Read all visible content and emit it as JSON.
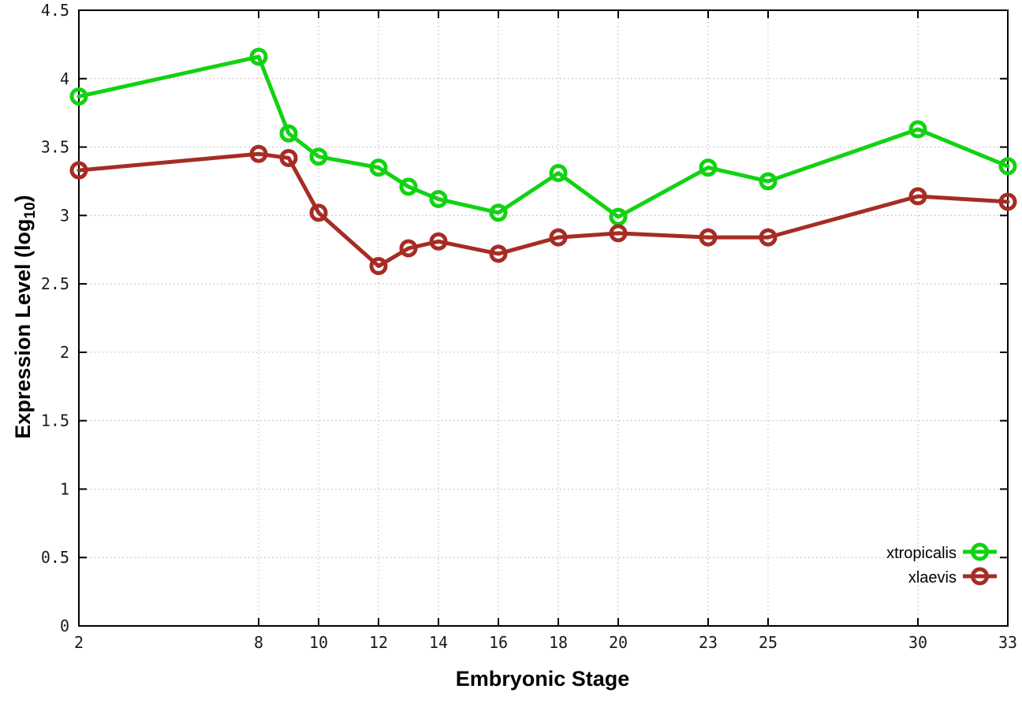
{
  "chart_data": {
    "type": "line",
    "title": "",
    "xlabel": "Embryonic Stage",
    "ylabel": "Expression Level (log10)",
    "ylabel_base": "Expression Level (log",
    "ylabel_sub": "10",
    "ylabel_close": ")",
    "x": [
      2,
      8,
      9,
      10,
      12,
      13,
      14,
      16,
      18,
      20,
      23,
      25,
      30,
      33
    ],
    "xticks": [
      "2",
      "8",
      "10",
      "12",
      "14",
      "16",
      "18",
      "20",
      "23",
      "25",
      "30",
      "33"
    ],
    "yticks": [
      "0",
      "0.5",
      "1",
      "1.5",
      "2",
      "2.5",
      "3",
      "3.5",
      "4",
      "4.5"
    ],
    "xlim": [
      2,
      33
    ],
    "ylim": [
      0,
      4.5
    ],
    "grid": true,
    "grid_style": "dotted",
    "legend_position": "bottom-right",
    "marker": "open-circle",
    "series": [
      {
        "name": "xtropicalis",
        "color": "#12d212",
        "values": [
          3.87,
          4.16,
          3.6,
          3.43,
          3.35,
          3.21,
          3.12,
          3.02,
          3.31,
          2.99,
          3.35,
          3.25,
          3.63,
          3.36
        ]
      },
      {
        "name": "xlaevis",
        "color": "#a62c24",
        "values": [
          3.33,
          3.45,
          3.42,
          3.02,
          2.63,
          2.76,
          2.81,
          2.72,
          2.84,
          2.87,
          2.84,
          2.84,
          3.14,
          3.1
        ]
      }
    ]
  },
  "colors": {
    "background": "#ffffff",
    "grid": "#b5b5b5",
    "border": "#000000",
    "text": "#000000",
    "xtropicalis": "#12d212",
    "xlaevis": "#a62c24"
  }
}
